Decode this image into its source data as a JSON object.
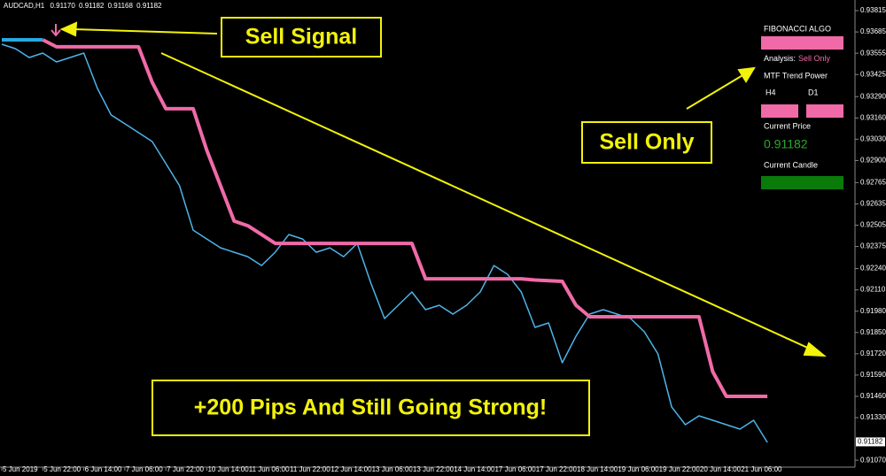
{
  "symbol_header": {
    "symbol": "AUDCAD,H1",
    "open": "0.91170",
    "high": "0.91182",
    "low": "0.91168",
    "close": "0.91182"
  },
  "chart_data": {
    "type": "line",
    "categories": [
      "5 Jun 2019",
      null,
      null,
      "5 Jun 22:00",
      null,
      null,
      "6 Jun 14:00",
      null,
      null,
      "7 Jun 06:00",
      null,
      null,
      "7 Jun 22:00",
      null,
      null,
      "10 Jun 14:00",
      null,
      null,
      "11 Jun 06:00",
      null,
      null,
      "11 Jun 22:00",
      null,
      null,
      "12 Jun 14:00",
      null,
      null,
      "13 Jun 06:00",
      null,
      null,
      "13 Jun 22:00",
      null,
      null,
      "14 Jun 14:00",
      null,
      null,
      "17 Jun 06:00",
      null,
      null,
      "17 Jun 22:00",
      null,
      null,
      "18 Jun 14:00",
      null,
      null,
      "19 Jun 06:00",
      null,
      null,
      "19 Jun 22:00",
      null,
      null,
      "20 Jun 14:00",
      null,
      null,
      "21 Jun 06:00",
      null,
      null
    ],
    "series": [
      {
        "color": "#4fb3e8",
        "values": [
          0.9361,
          0.93583,
          0.93529,
          0.93556,
          0.93502,
          0.93529,
          0.93556,
          0.9334,
          0.93178,
          0.93124,
          0.9307,
          0.93016,
          0.92881,
          0.92746,
          0.92475,
          0.92421,
          0.92367,
          0.9234,
          0.92313,
          0.92259,
          0.9234,
          0.92448,
          0.92421,
          0.9234,
          0.92367,
          0.92313,
          0.92394,
          0.92151,
          0.91935,
          0.92016,
          0.92097,
          0.91989,
          0.92016,
          0.91962,
          0.92016,
          0.92097,
          0.92259,
          0.92205,
          0.92097,
          0.91881,
          0.91908,
          0.91665,
          0.91827,
          0.91962,
          0.91989,
          0.91962,
          0.91935,
          0.91854,
          0.91719,
          0.91395,
          0.91287,
          0.91341,
          0.91314,
          0.91287,
          0.9126,
          0.91314,
          0.91179
        ]
      },
      {
        "color": "#29a8e0",
        "values": [
          0.93637,
          0.93637,
          0.93637,
          0.93637,
          null,
          null,
          null,
          null,
          null,
          null,
          null,
          null,
          null,
          null,
          null,
          null,
          null,
          null,
          null,
          null,
          null,
          null,
          null,
          null,
          null,
          null,
          null,
          null,
          null,
          null,
          null,
          null,
          null,
          null,
          null,
          null,
          null,
          null,
          null,
          null,
          null,
          null,
          null,
          null,
          null,
          null,
          null,
          null,
          null,
          null,
          null,
          null,
          null,
          null,
          null,
          null,
          null
        ]
      },
      {
        "color": "#f06aa8",
        "values": [
          null,
          null,
          null,
          0.93637,
          0.93594,
          0.93594,
          0.93594,
          0.93594,
          0.93594,
          0.93594,
          0.93594,
          0.93378,
          0.93216,
          0.93216,
          0.93216,
          0.92962,
          0.92746,
          0.9253,
          0.92502,
          0.92448,
          0.92394,
          0.92394,
          0.92394,
          0.92394,
          0.92394,
          0.92394,
          0.92394,
          0.92394,
          0.92394,
          0.92394,
          0.92394,
          0.92178,
          0.92178,
          0.92178,
          0.92178,
          0.92178,
          0.92178,
          0.92178,
          0.92178,
          0.9217,
          0.92166,
          0.92162,
          0.92016,
          0.91946,
          0.91946,
          0.91946,
          0.91946,
          0.91946,
          0.91946,
          0.91946,
          0.91946,
          0.91946,
          0.91611,
          0.9146,
          0.9146,
          0.9146,
          0.9146
        ]
      }
    ],
    "ylim": [
      0.9106,
      0.9388
    ],
    "yticks": [
      0.93815,
      0.93685,
      0.93555,
      0.93425,
      {
        "value": 0.9329,
        "label": "0.93290"
      },
      {
        "value": 0.9316,
        "label": "0.93160"
      },
      {
        "value": 0.9303,
        "label": "0.93030"
      },
      {
        "value": 0.929,
        "label": "0.92900"
      },
      0.92765,
      0.92635,
      0.92505,
      0.92375,
      {
        "value": 0.9224,
        "label": "0.92240"
      },
      {
        "value": 0.9211,
        "label": "0.92110"
      },
      {
        "value": 0.9198,
        "label": "0.91980"
      },
      {
        "value": 0.9185,
        "label": "0.91850"
      },
      {
        "value": 0.9172,
        "label": "0.91720"
      },
      {
        "value": 0.9159,
        "label": "0.91590"
      },
      {
        "value": 0.9146,
        "label": "0.91460"
      },
      {
        "value": 0.9133,
        "label": "0.91330"
      },
      {
        "value": 0.9107,
        "label": "0.91070"
      }
    ],
    "current_price": 0.91182,
    "annotations": [
      "Sell Signal",
      "Sell Only",
      "+200 Pips And Still Going Strong!"
    ]
  },
  "panel": {
    "title": "FIBONACCI ALGO",
    "analysis_label": "Analysis:",
    "analysis_value": "Sell Only",
    "mtf_label": "MTF Trend Power",
    "tf1": "H4",
    "tf2": "D1",
    "price_label": "Current Price",
    "price_value": "0.91182",
    "candle_label": "Current Candle"
  }
}
